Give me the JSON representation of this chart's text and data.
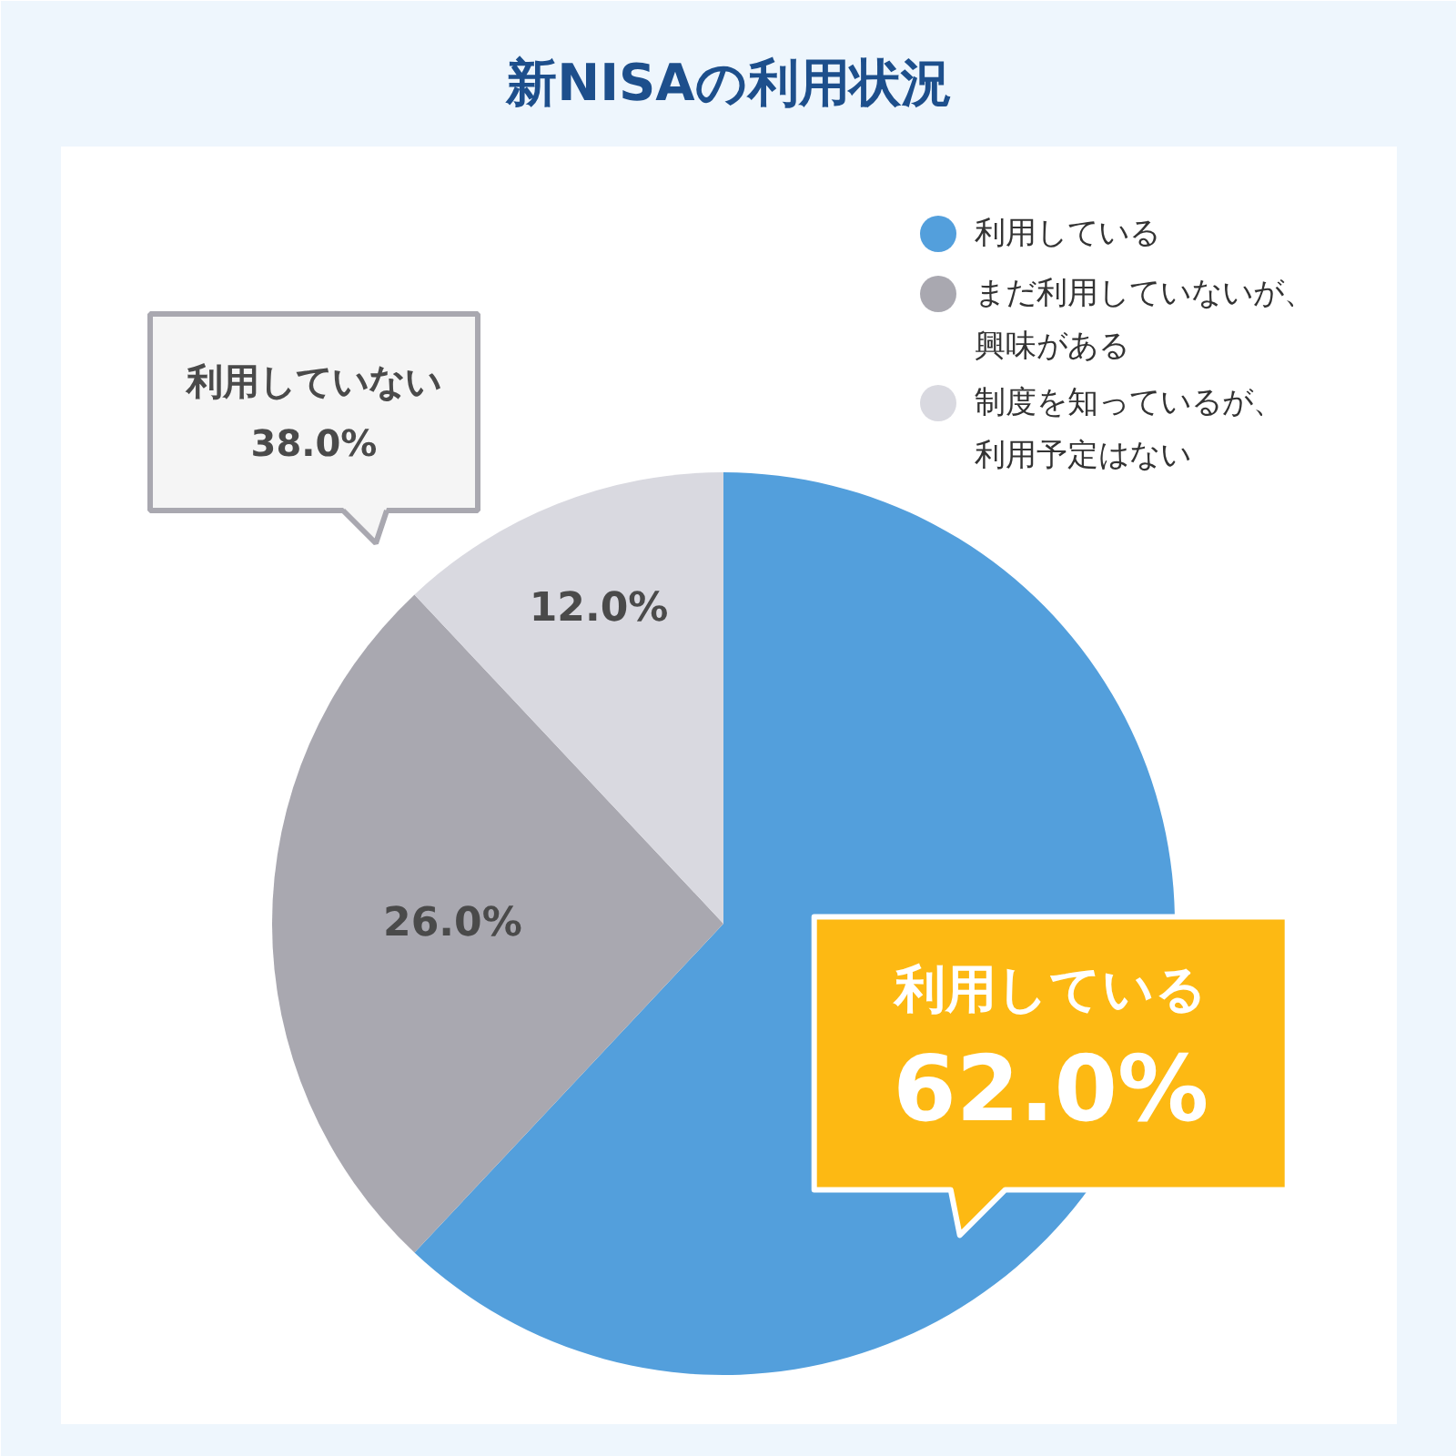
{
  "chart_data": {
    "type": "pie",
    "title": "新NISAの利用状況",
    "categories": [
      "利用している",
      "まだ利用していないが、興味がある",
      "制度を知っているが、利用予定はない"
    ],
    "values": [
      62,
      26,
      12
    ],
    "colors": [
      "#539fdc",
      "#a9a8b0",
      "#d9d9e0"
    ],
    "value_labels": [
      "62.0%",
      "26.0%",
      "12.0%"
    ],
    "legend": "top right",
    "annotations": [
      "利用していない\n38.0%"
    ]
  }
}
